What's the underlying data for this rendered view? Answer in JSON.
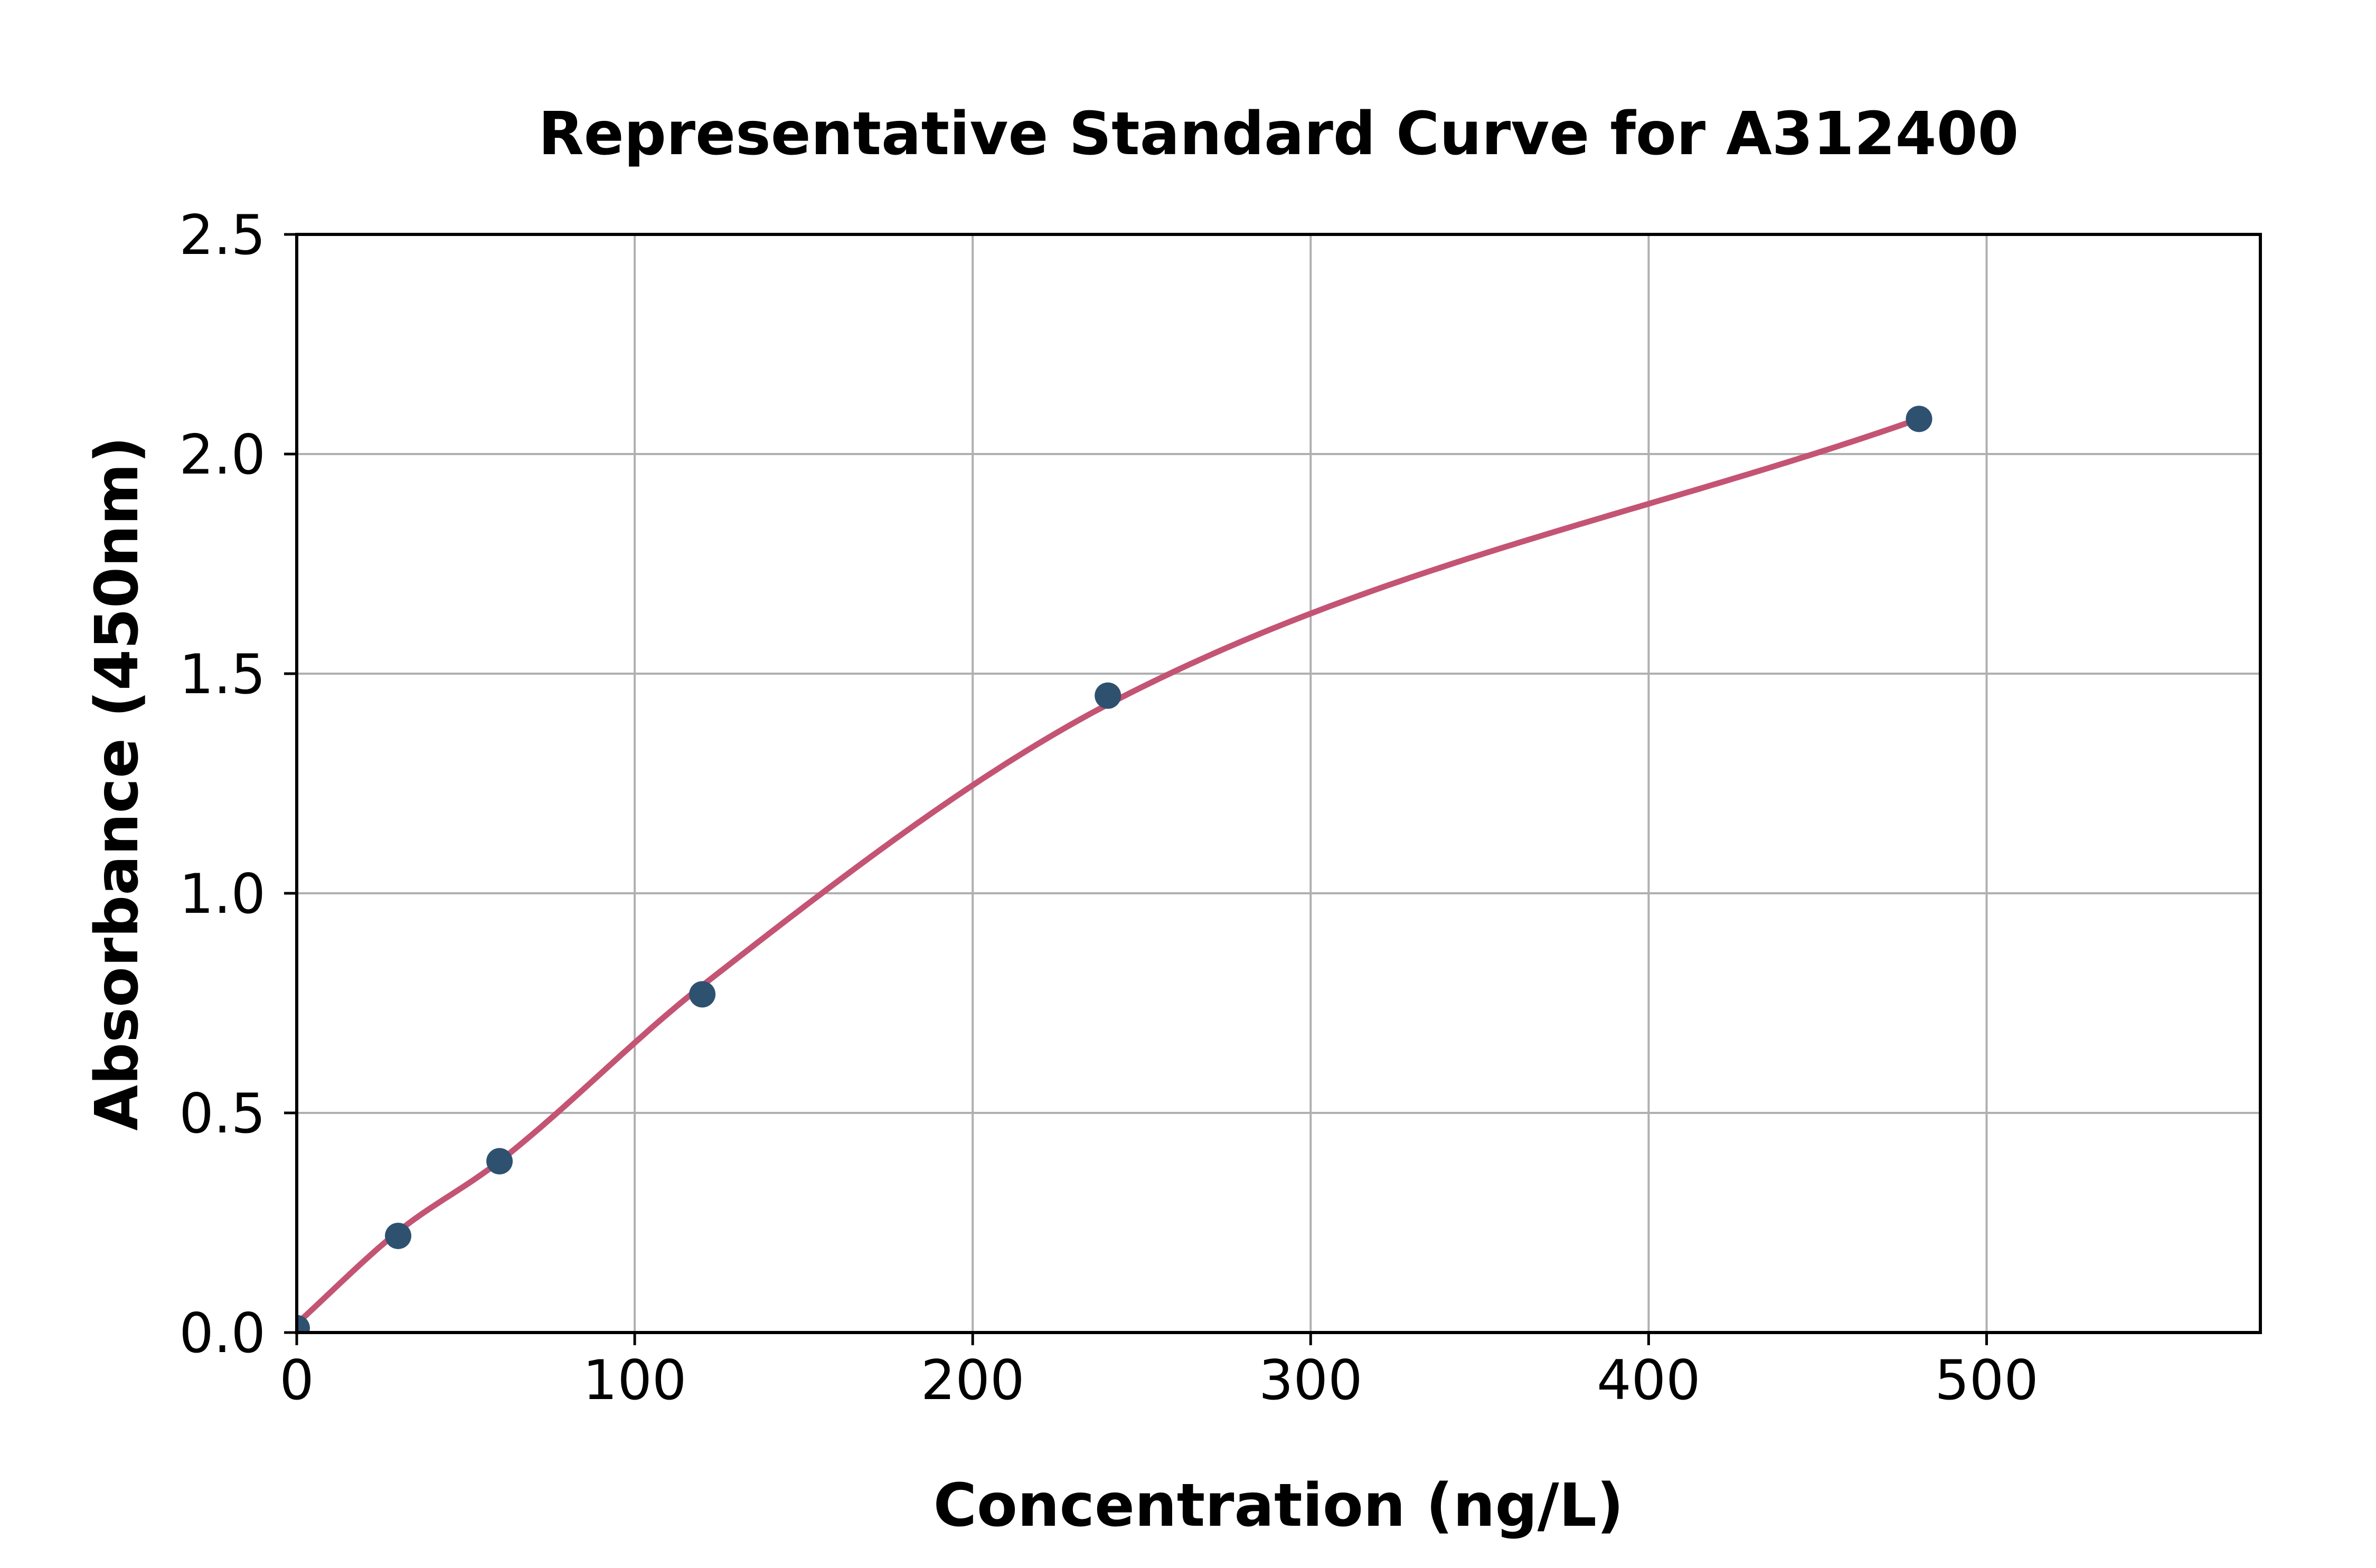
{
  "chart_data": {
    "type": "scatter",
    "title": "Representative Standard Curve for A312400",
    "xlabel": "Concentration (ng/L)",
    "ylabel": "Absorbance (450nm)",
    "x": [
      0,
      30,
      60,
      120,
      240,
      480
    ],
    "y": [
      0.01,
      0.22,
      0.39,
      0.77,
      1.45,
      2.08
    ],
    "fit_curve": {
      "present": true,
      "points_x": [
        0,
        30,
        60,
        120,
        240,
        480
      ],
      "points_y": [
        0.02,
        0.23,
        0.39,
        0.79,
        1.43,
        2.08
      ]
    },
    "xlim": [
      0,
      581
    ],
    "ylim": [
      0,
      2.5
    ],
    "xticks": [
      0,
      100,
      200,
      300,
      400,
      500
    ],
    "xtick_labels": [
      "0",
      "100",
      "200",
      "300",
      "400",
      "500"
    ],
    "yticks": [
      0,
      0.5,
      1.0,
      1.5,
      2.0,
      2.5
    ],
    "ytick_labels": [
      "0.0",
      "0.5",
      "1.0",
      "1.5",
      "2.0",
      "2.5"
    ],
    "grid": true,
    "legend": "none",
    "colors": {
      "point": "#2F5170",
      "curve": "#C45474",
      "grid": "#b0b0b0",
      "axis": "#000000",
      "text": "#000000",
      "background": "#ffffff"
    }
  }
}
